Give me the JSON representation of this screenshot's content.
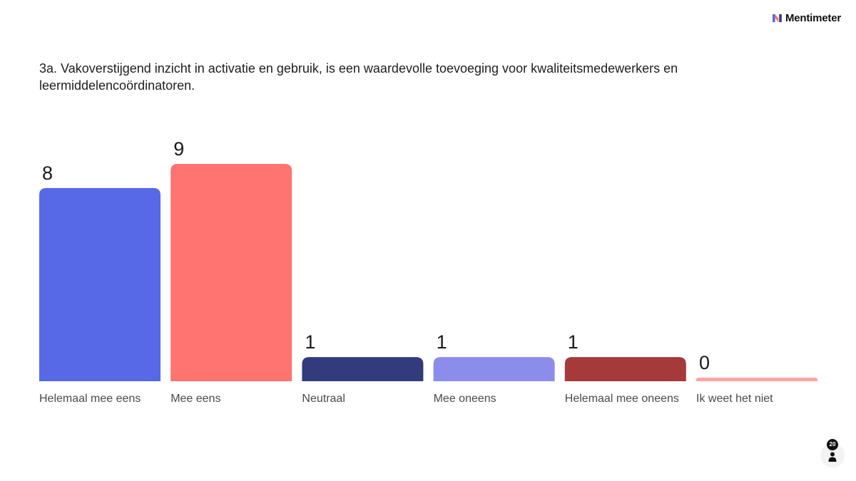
{
  "brand": {
    "name": "Mentimeter"
  },
  "question": "3a. Vakoverstijgend inzicht in activatie en gebruik, is een waardevolle toevoeging voor kwaliteitsmedewerkers en leermiddelencoördinatoren.",
  "participants": {
    "count": "20",
    "icon": "person-icon"
  },
  "chart_data": {
    "type": "bar",
    "categories": [
      "Helemaal mee eens",
      "Mee eens",
      "Neutraal",
      "Mee oneens",
      "Helemaal mee oneens",
      "Ik weet het niet"
    ],
    "values": [
      8,
      9,
      1,
      1,
      1,
      0
    ],
    "colors": [
      "#5769e6",
      "#ff7370",
      "#323c7c",
      "#8c8ceb",
      "#a63a3a",
      "#ffa3a3"
    ],
    "title": "3a. Vakoverstijgend inzicht in activatie en gebruik, is een waardevolle toevoeging voor kwaliteitsmedewerkers en leermiddelencoördinatoren.",
    "xlabel": "",
    "ylabel": "",
    "ylim": [
      0,
      9
    ],
    "grid": false,
    "legend": "none"
  }
}
